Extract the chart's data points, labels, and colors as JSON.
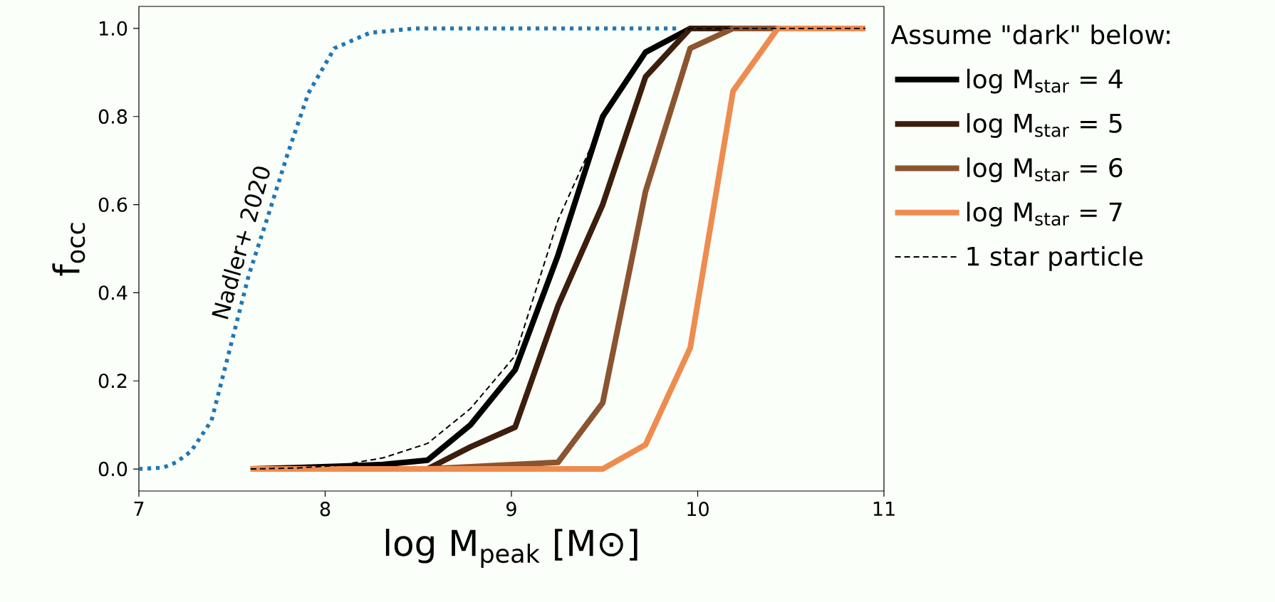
{
  "chart_data": {
    "type": "line",
    "xlabel": "log M$_{peak}$ [M⊙]",
    "ylabel": "f$_{occ}$",
    "legend_title": "Assume \"dark\" below:",
    "x": [
      7.6,
      7.84,
      8.07,
      8.31,
      8.55,
      8.78,
      9.02,
      9.25,
      9.49,
      9.72,
      9.96,
      10.19,
      10.43,
      10.66,
      10.9
    ],
    "series": [
      {
        "name": "log M$_{star}$ = 4",
        "color": "#000000",
        "line_style": "solid",
        "values": [
          0,
          0.003,
          0.006,
          0.01,
          0.02,
          0.1,
          0.225,
          0.485,
          0.8,
          0.946,
          1.0,
          1.0,
          1.0,
          1.0,
          1.0
        ]
      },
      {
        "name": "log M$_{star}$ = 5",
        "color": "#3b1e0c",
        "line_style": "solid",
        "values": [
          0,
          0,
          0,
          0,
          0,
          0.05,
          0.095,
          0.37,
          0.6,
          0.89,
          1.0,
          1.0,
          1.0,
          1.0,
          1.0
        ]
      },
      {
        "name": "log M$_{star}$ = 6",
        "color": "#8b5430",
        "line_style": "solid",
        "values": [
          0,
          0,
          0,
          0,
          0,
          0.005,
          0.01,
          0.015,
          0.15,
          0.63,
          0.955,
          1.0,
          1.0,
          1.0,
          1.0
        ]
      },
      {
        "name": "log M$_{star}$ = 7",
        "color": "#ee8c50",
        "line_style": "solid",
        "values": [
          0,
          0,
          0,
          0,
          0,
          0,
          0,
          0,
          0,
          0.055,
          0.275,
          0.858,
          1.0,
          1.0,
          1.0
        ]
      },
      {
        "name": "1 star particle",
        "color": "#000000",
        "line_style": "dashed",
        "values": [
          0,
          0.002,
          0.008,
          0.025,
          0.058,
          0.137,
          0.257,
          0.565,
          0.79,
          0.95,
          1.0,
          1.0,
          1.0,
          1.0,
          1.0
        ]
      },
      {
        "color": "#1f77b4",
        "line_style": "dotted",
        "x": [
          7.0,
          7.13,
          7.2,
          7.28,
          7.39,
          7.49,
          7.59,
          7.69,
          7.8,
          7.91,
          8.05,
          8.24,
          8.48,
          9.0,
          9.5,
          9.9
        ],
        "values": [
          0,
          0.003,
          0.015,
          0.04,
          0.11,
          0.275,
          0.44,
          0.57,
          0.717,
          0.853,
          0.955,
          0.99,
          1.0,
          1.0,
          1.0,
          1.0
        ]
      }
    ],
    "annotations": [
      "Nadler+ 2020"
    ],
    "xlim": [
      7,
      11
    ],
    "ylim": [
      -0.05,
      1.05
    ],
    "xticks": [
      7,
      8,
      9,
      10,
      11
    ],
    "yticks": [
      {
        "value": 0,
        "label": "0.0"
      },
      {
        "value": 0.2,
        "label": "0.2"
      },
      {
        "value": 0.4,
        "label": "0.4"
      },
      {
        "value": 0.6,
        "label": "0.6"
      },
      {
        "value": 0.8,
        "label": "0.8"
      },
      {
        "value": 1.0,
        "label": "1.0"
      }
    ],
    "legend": "right",
    "grid": false,
    "marker": "none"
  }
}
